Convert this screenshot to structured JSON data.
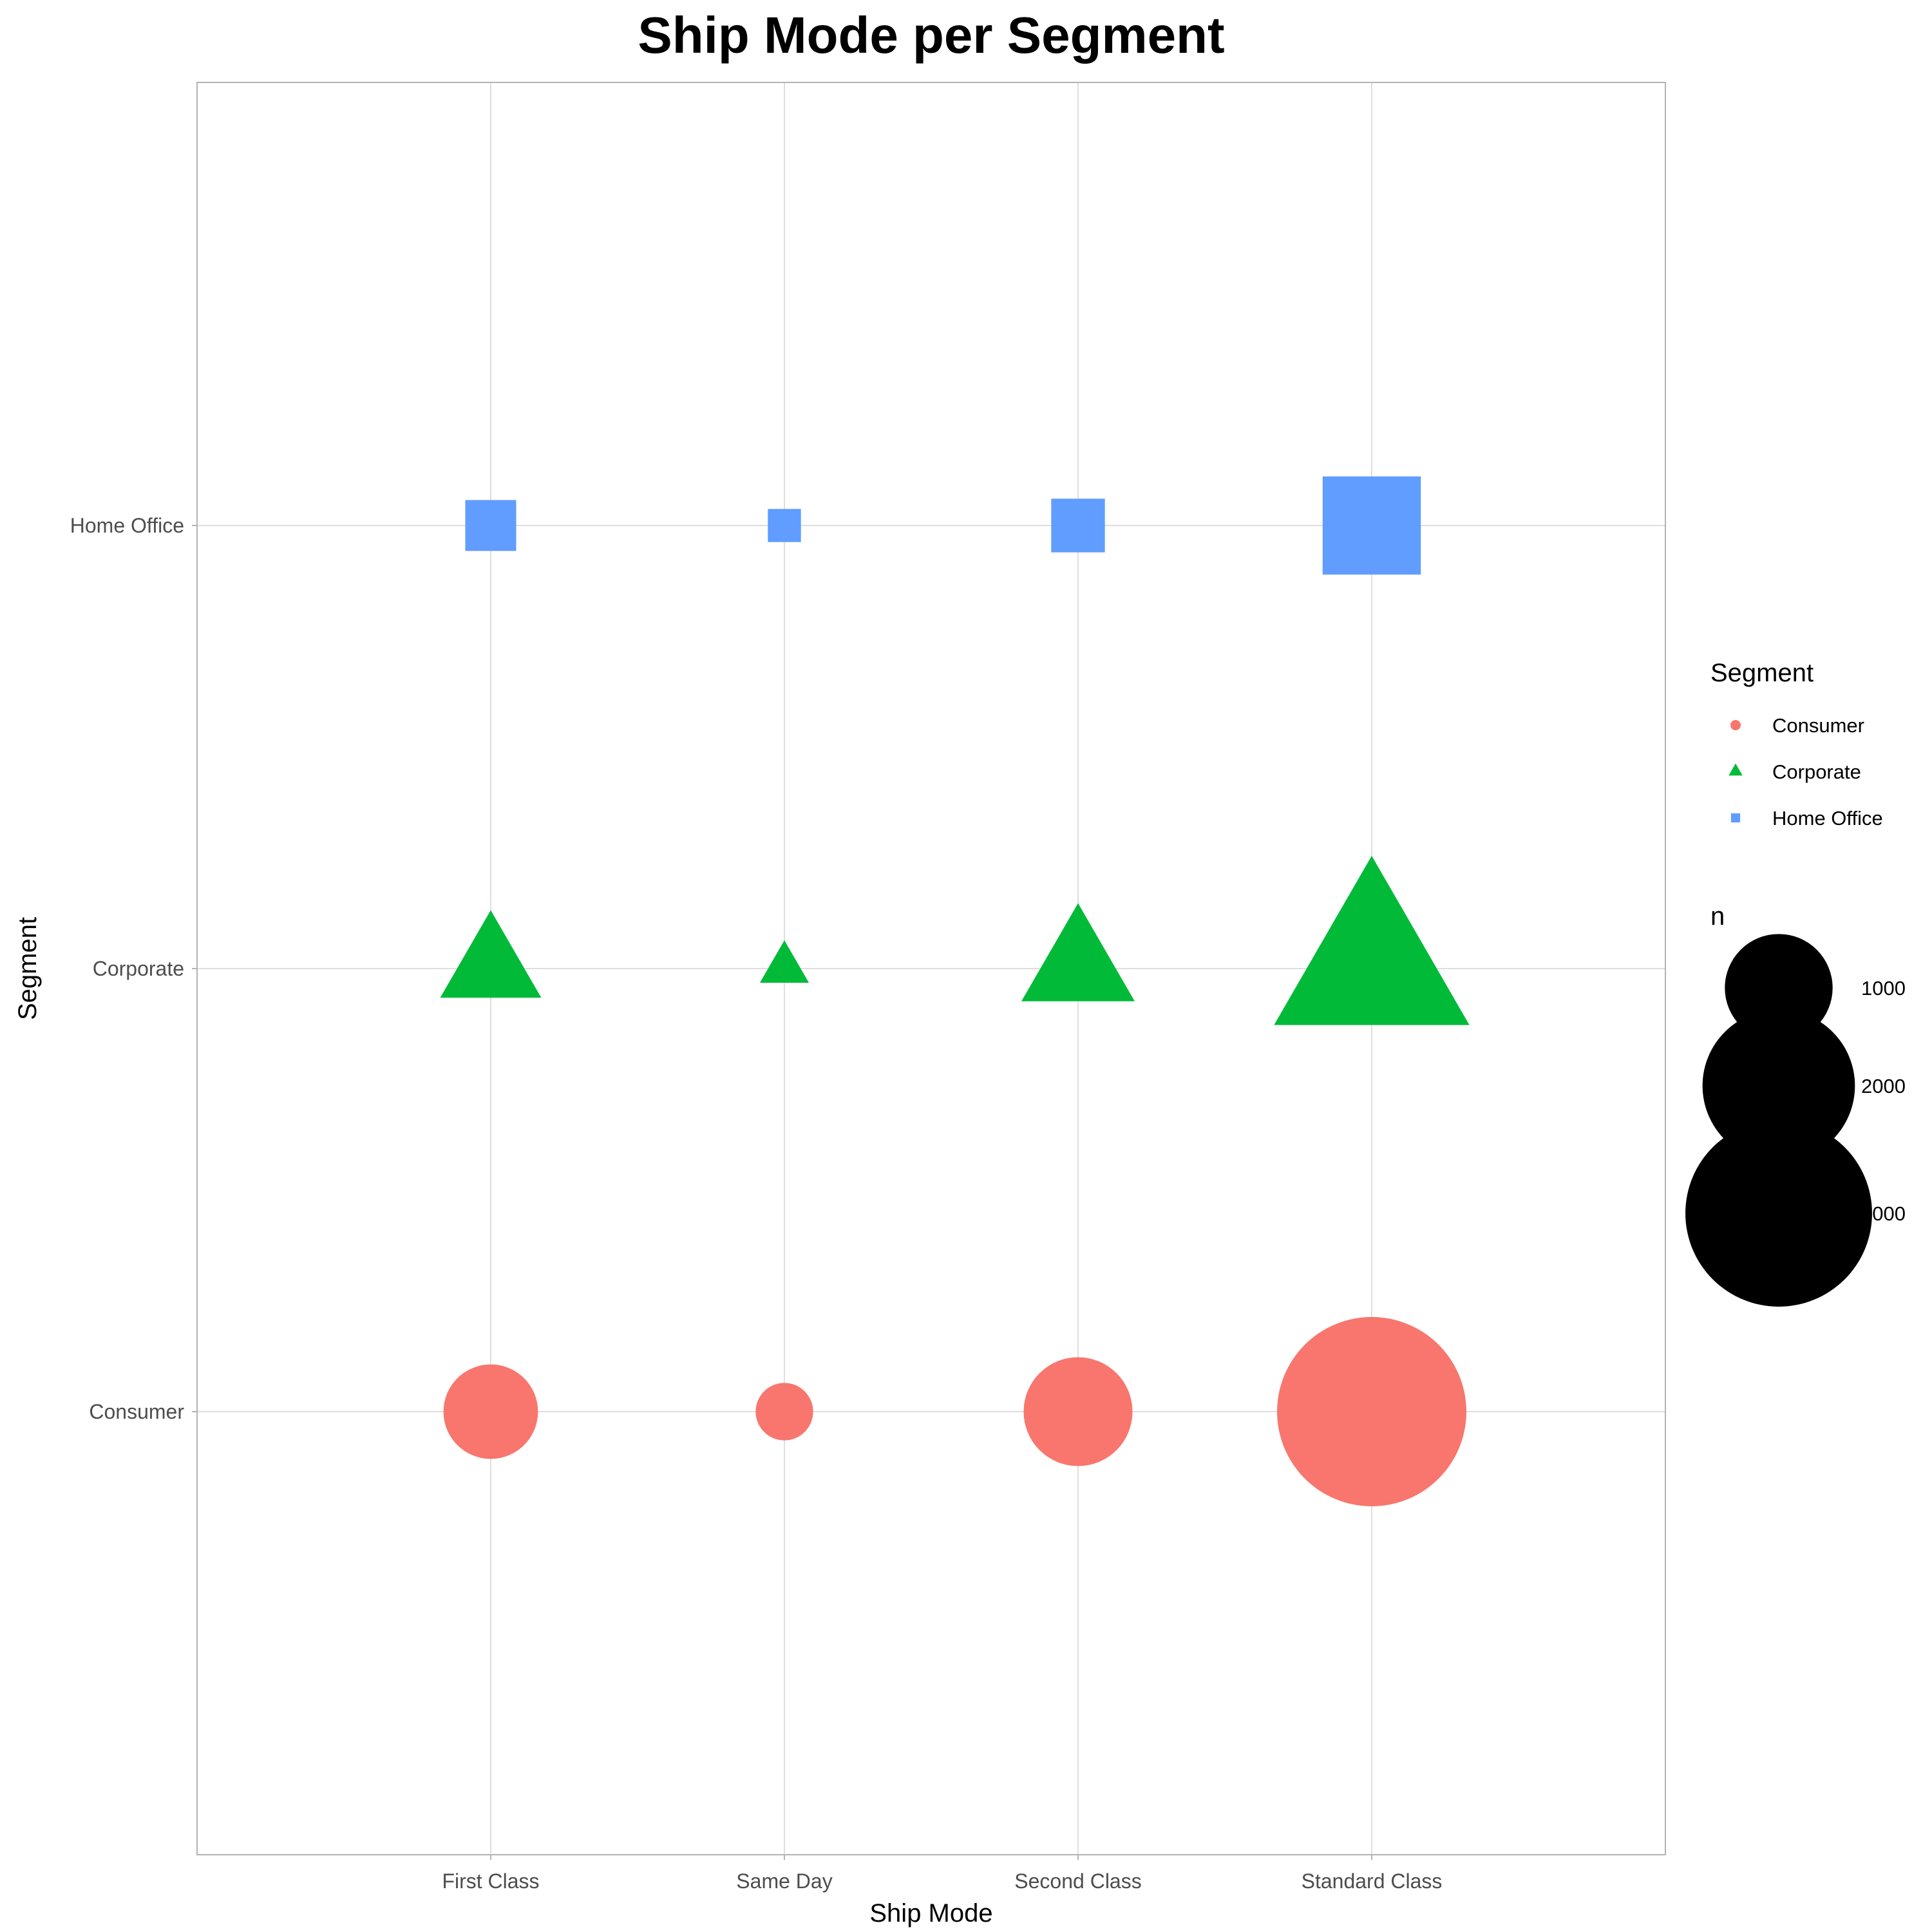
{
  "chart_data": {
    "type": "scatter",
    "title": "Ship Mode per Segment",
    "xlabel": "Ship Mode",
    "ylabel": "Segment",
    "categories": [
      "First Class",
      "Same Day",
      "Second Class",
      "Standard Class"
    ],
    "y_categories": [
      "Consumer",
      "Corporate",
      "Home Office"
    ],
    "grid": true,
    "legend_position": "right",
    "series": [
      {
        "name": "Consumer",
        "shape": "circle",
        "color": "#F8766D",
        "values": [
          769,
          284,
          1020,
          3085
        ]
      },
      {
        "name": "Corporate",
        "shape": "triangle",
        "color": "#00BA38",
        "values": [
          485,
          114,
          609,
          1812
        ]
      },
      {
        "name": "Home Office",
        "shape": "square",
        "color": "#619CFF",
        "values": [
          284,
          120,
          316,
          1057
        ]
      }
    ],
    "legends": {
      "color_title": "Segment",
      "size_title": "n",
      "size_breaks": [
        1000,
        2000,
        3000
      ]
    }
  }
}
